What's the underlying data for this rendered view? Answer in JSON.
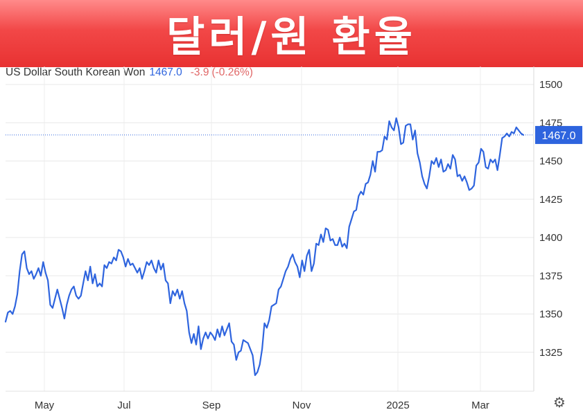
{
  "banner": {
    "title": "달러/원 환율"
  },
  "quote": {
    "name": "US Dollar South Korean Won",
    "price": "1467.0",
    "change": "-3.9",
    "change_pct": "(-0.26%)"
  },
  "colors": {
    "line": "#2e64de",
    "change_negative": "#e06666",
    "banner": "#f24747"
  },
  "settings_icon": "gear-icon",
  "chart_data": {
    "type": "line",
    "x_ticks": [
      "May",
      "Jul",
      "Sep",
      "Nov",
      "2025",
      "Mar"
    ],
    "y_ticks": [
      "1500",
      "1475",
      "1450",
      "1425",
      "1400",
      "1375",
      "1350",
      "1325"
    ],
    "ylim": [
      1300,
      1510
    ],
    "last_value_label": "1467.0",
    "last_value": 1467.0,
    "grid": true,
    "y_axis_position": "right",
    "series": [
      {
        "values": [
          1345,
          1351,
          1352,
          1350,
          1355,
          1363,
          1378,
          1389,
          1391,
          1380,
          1376,
          1378,
          1373,
          1376,
          1380,
          1375,
          1384,
          1377,
          1372,
          1356,
          1354,
          1360,
          1366,
          1360,
          1354,
          1347,
          1356,
          1362,
          1366,
          1368,
          1362,
          1360,
          1362,
          1370,
          1378,
          1372,
          1381,
          1370,
          1376,
          1368,
          1370,
          1368,
          1382,
          1380,
          1384,
          1383,
          1387,
          1385,
          1392,
          1391,
          1387,
          1381,
          1386,
          1382,
          1383,
          1380,
          1377,
          1380,
          1373,
          1378,
          1384,
          1382,
          1385,
          1380,
          1377,
          1385,
          1379,
          1383,
          1372,
          1370,
          1357,
          1365,
          1362,
          1366,
          1360,
          1365,
          1357,
          1352,
          1338,
          1331,
          1337,
          1330,
          1342,
          1327,
          1334,
          1338,
          1334,
          1338,
          1336,
          1333,
          1340,
          1335,
          1342,
          1336,
          1340,
          1344,
          1332,
          1330,
          1320,
          1325,
          1326,
          1333,
          1332,
          1331,
          1327,
          1323,
          1310,
          1312,
          1317,
          1327,
          1344,
          1341,
          1346,
          1355,
          1356,
          1357,
          1366,
          1368,
          1373,
          1378,
          1381,
          1386,
          1389,
          1384,
          1381,
          1374,
          1385,
          1378,
          1388,
          1392,
          1378,
          1383,
          1396,
          1395,
          1402,
          1397,
          1406,
          1405,
          1398,
          1399,
          1395,
          1395,
          1400,
          1394,
          1396,
          1393,
          1407,
          1412,
          1417,
          1418,
          1427,
          1430,
          1428,
          1435,
          1436,
          1441,
          1450,
          1443,
          1456,
          1456,
          1457,
          1466,
          1464,
          1476,
          1472,
          1470,
          1478,
          1472,
          1461,
          1462,
          1473,
          1474,
          1474,
          1464,
          1470,
          1455,
          1449,
          1440,
          1435,
          1432,
          1440,
          1450,
          1448,
          1452,
          1446,
          1451,
          1443,
          1444,
          1448,
          1445,
          1454,
          1451,
          1440,
          1441,
          1437,
          1440,
          1436,
          1431,
          1432,
          1434,
          1447,
          1449,
          1458,
          1456,
          1446,
          1445,
          1451,
          1449,
          1451,
          1444,
          1454,
          1465,
          1466,
          1468,
          1466,
          1469,
          1468,
          1472,
          1470,
          1468,
          1467
        ]
      }
    ]
  }
}
